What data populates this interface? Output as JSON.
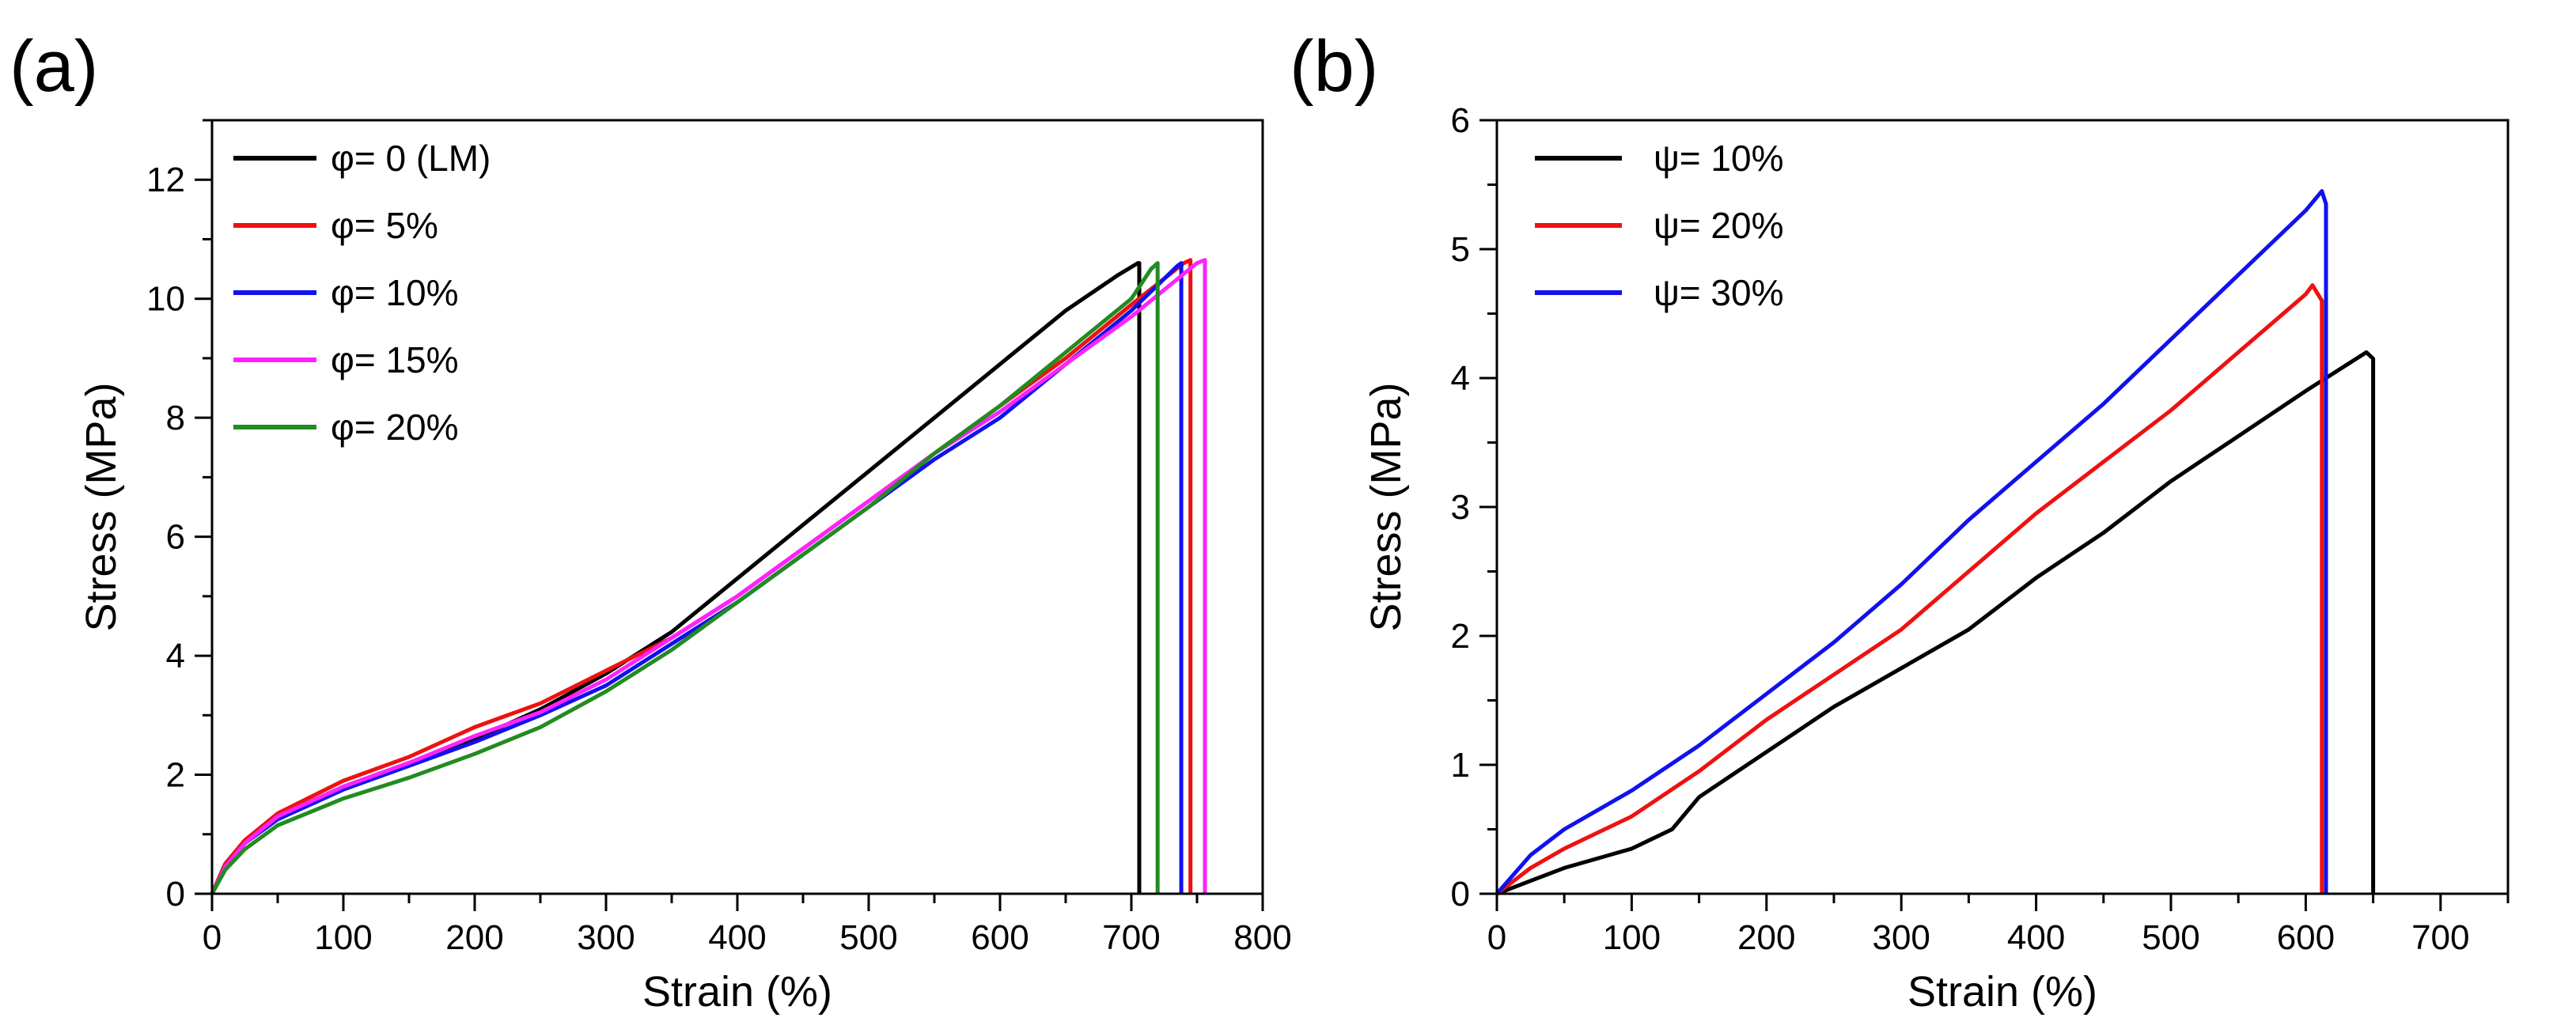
{
  "chart_data": [
    {
      "panel_label": "(a)",
      "type": "line",
      "xlabel": "Strain (%)",
      "ylabel": "Stress (MPa)",
      "xlim": [
        0,
        800
      ],
      "ylim": [
        0,
        13
      ],
      "xticks": [
        0,
        100,
        200,
        300,
        400,
        500,
        600,
        700,
        800
      ],
      "yticks": [
        0,
        2,
        4,
        6,
        8,
        10,
        12
      ],
      "xtick_labels": [
        "0",
        "100",
        "200",
        "300",
        "400",
        "500",
        "600",
        "700",
        "800"
      ],
      "ytick_labels": [
        "0",
        "2",
        "4",
        "6",
        "8",
        "10",
        "12"
      ],
      "legend_position": "top-left",
      "series": [
        {
          "name": "φ= 0 (LM)",
          "color": "#000000",
          "x": [
            0,
            10,
            25,
            50,
            100,
            150,
            200,
            250,
            300,
            350,
            400,
            450,
            500,
            550,
            600,
            650,
            690,
            705,
            706,
            706
          ],
          "y": [
            0,
            0.5,
            0.9,
            1.3,
            1.8,
            2.2,
            2.6,
            3.1,
            3.7,
            4.4,
            5.3,
            6.2,
            7.1,
            8.0,
            8.9,
            9.8,
            10.4,
            10.6,
            10.6,
            0
          ]
        },
        {
          "name": "φ= 5%",
          "color": "#ee1111",
          "x": [
            0,
            10,
            25,
            50,
            100,
            150,
            200,
            250,
            300,
            350,
            400,
            450,
            500,
            550,
            600,
            650,
            700,
            740,
            745,
            745
          ],
          "y": [
            0,
            0.5,
            0.9,
            1.35,
            1.9,
            2.3,
            2.8,
            3.2,
            3.75,
            4.3,
            5.0,
            5.8,
            6.6,
            7.4,
            8.2,
            9.0,
            9.9,
            10.6,
            10.65,
            0
          ]
        },
        {
          "name": "φ= 10%",
          "color": "#1111ee",
          "x": [
            0,
            10,
            25,
            50,
            100,
            150,
            200,
            250,
            300,
            350,
            400,
            450,
            500,
            550,
            600,
            650,
            700,
            735,
            738,
            738
          ],
          "y": [
            0,
            0.45,
            0.85,
            1.25,
            1.75,
            2.15,
            2.55,
            3.0,
            3.5,
            4.2,
            4.9,
            5.7,
            6.5,
            7.3,
            8.0,
            8.9,
            9.8,
            10.55,
            10.6,
            0
          ]
        },
        {
          "name": "φ= 15%",
          "color": "#ff22ff",
          "x": [
            0,
            10,
            25,
            50,
            100,
            150,
            200,
            250,
            300,
            350,
            400,
            450,
            500,
            550,
            600,
            650,
            700,
            750,
            756,
            756
          ],
          "y": [
            0,
            0.45,
            0.85,
            1.3,
            1.8,
            2.2,
            2.65,
            3.05,
            3.6,
            4.3,
            5.0,
            5.8,
            6.6,
            7.4,
            8.1,
            8.9,
            9.7,
            10.6,
            10.65,
            0
          ]
        },
        {
          "name": "φ= 20%",
          "color": "#228b22",
          "x": [
            0,
            10,
            25,
            50,
            100,
            150,
            200,
            250,
            300,
            350,
            400,
            450,
            500,
            550,
            600,
            650,
            700,
            715,
            720,
            720
          ],
          "y": [
            0,
            0.4,
            0.75,
            1.15,
            1.6,
            1.95,
            2.35,
            2.8,
            3.4,
            4.1,
            4.9,
            5.7,
            6.5,
            7.4,
            8.2,
            9.1,
            10.0,
            10.5,
            10.6,
            0
          ]
        }
      ]
    },
    {
      "panel_label": "(b)",
      "type": "line",
      "xlabel": "Strain (%)",
      "ylabel": "Stress (MPa)",
      "xlim": [
        0,
        750
      ],
      "ylim": [
        0,
        6
      ],
      "xticks": [
        0,
        100,
        200,
        300,
        400,
        500,
        600,
        700
      ],
      "yticks": [
        0,
        1,
        2,
        3,
        4,
        5,
        6
      ],
      "xtick_labels": [
        "0",
        "100",
        "200",
        "300",
        "400",
        "500",
        "600",
        "700"
      ],
      "ytick_labels": [
        "0",
        "1",
        "2",
        "3",
        "4",
        "5",
        "6"
      ],
      "legend_position": "top-left",
      "series": [
        {
          "name": "ψ= 10%",
          "color": "#000000",
          "x": [
            0,
            25,
            50,
            100,
            130,
            150,
            200,
            250,
            300,
            350,
            400,
            450,
            500,
            550,
            600,
            645,
            650,
            650
          ],
          "y": [
            0,
            0.1,
            0.2,
            0.35,
            0.5,
            0.75,
            1.1,
            1.45,
            1.75,
            2.05,
            2.45,
            2.8,
            3.2,
            3.55,
            3.9,
            4.2,
            4.15,
            0
          ]
        },
        {
          "name": "ψ= 20%",
          "color": "#ee1111",
          "x": [
            0,
            25,
            50,
            100,
            150,
            200,
            250,
            300,
            350,
            400,
            450,
            500,
            550,
            600,
            605,
            612,
            612
          ],
          "y": [
            0,
            0.2,
            0.35,
            0.6,
            0.95,
            1.35,
            1.7,
            2.05,
            2.5,
            2.95,
            3.35,
            3.75,
            4.2,
            4.65,
            4.72,
            4.6,
            0
          ]
        },
        {
          "name": "ψ= 30%",
          "color": "#1111ee",
          "x": [
            0,
            25,
            50,
            100,
            150,
            200,
            250,
            300,
            350,
            400,
            450,
            500,
            550,
            600,
            612,
            615,
            615
          ],
          "y": [
            0,
            0.3,
            0.5,
            0.8,
            1.15,
            1.55,
            1.95,
            2.4,
            2.9,
            3.35,
            3.8,
            4.3,
            4.8,
            5.3,
            5.45,
            5.35,
            0
          ]
        }
      ]
    }
  ]
}
